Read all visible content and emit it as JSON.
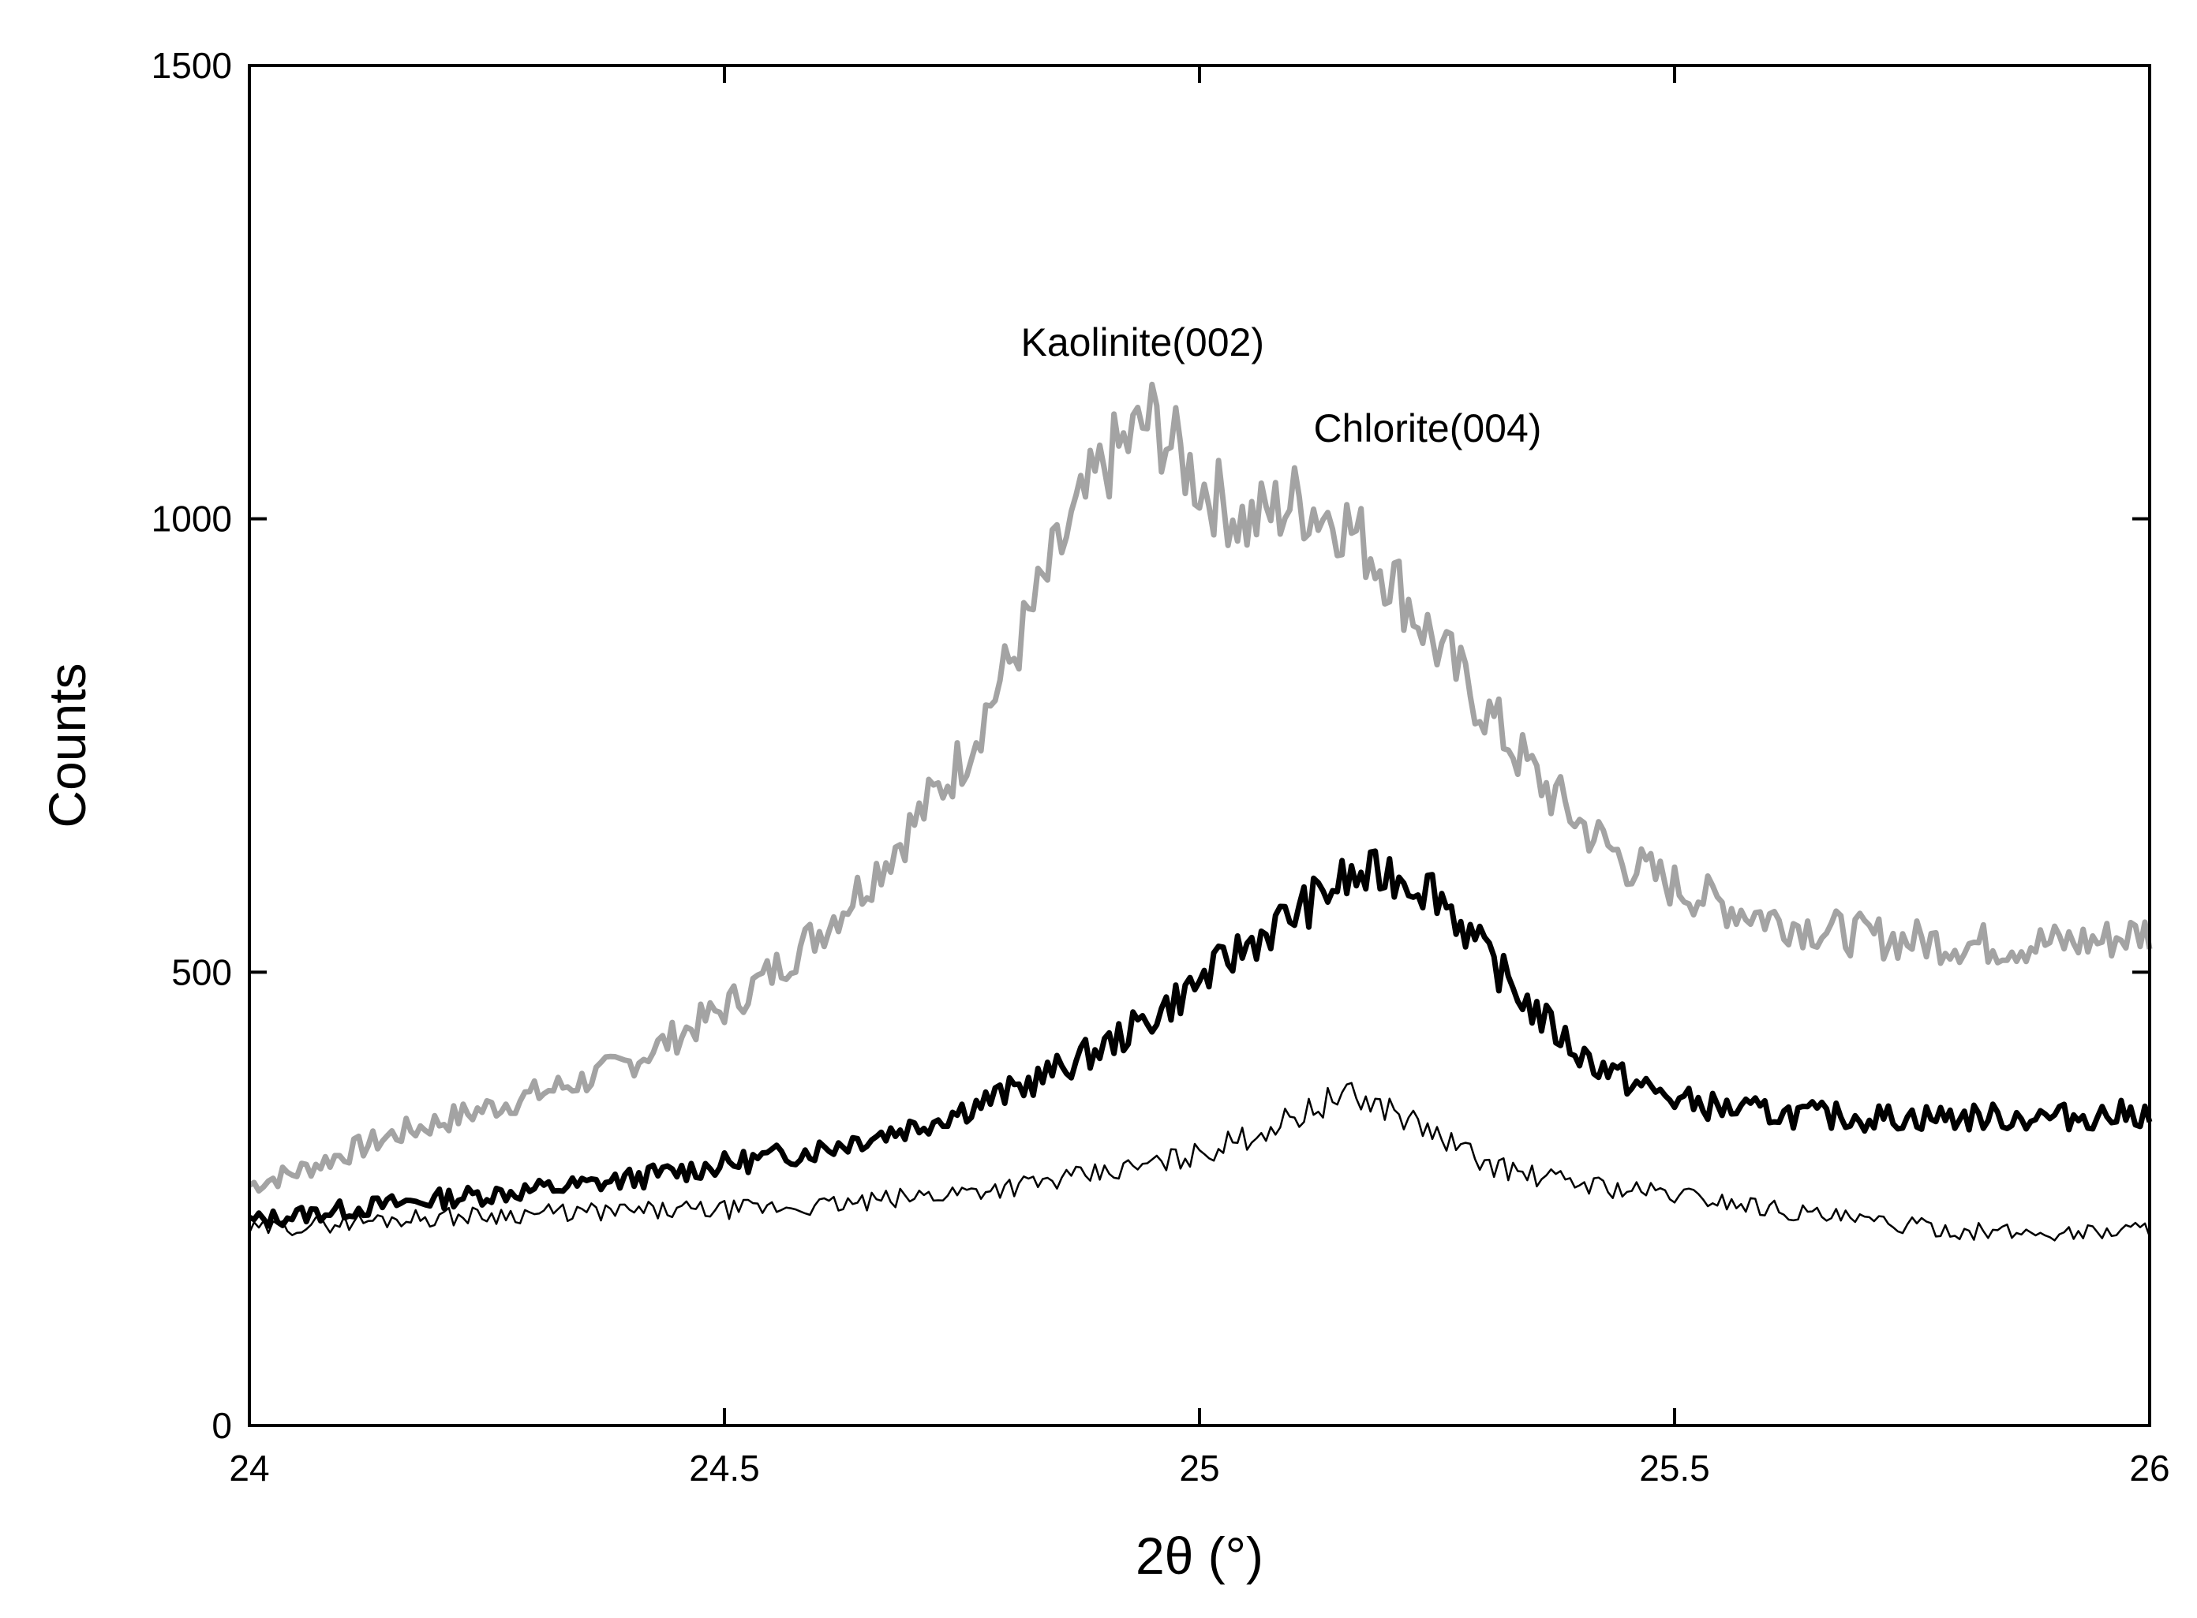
{
  "chart_data": {
    "type": "line",
    "xlabel": "2θ (°)",
    "ylabel": "Counts",
    "xlim": [
      24,
      26
    ],
    "ylim": [
      0,
      1500
    ],
    "xticks": [
      "24",
      "24.5",
      "25",
      "25.5",
      "26"
    ],
    "yticks": [
      "0",
      "500",
      "1000",
      "1500"
    ],
    "grid": false,
    "legend": "none",
    "series": [
      {
        "color": "#a3a3a3",
        "style": "thick",
        "x": [
          24.0,
          24.05,
          24.1,
          24.15,
          24.2,
          24.25,
          24.3,
          24.35,
          24.4,
          24.45,
          24.5,
          24.55,
          24.6,
          24.65,
          24.7,
          24.75,
          24.8,
          24.85,
          24.9,
          24.95,
          25.0,
          25.05,
          25.1,
          25.15,
          25.2,
          25.25,
          25.3,
          25.35,
          25.4,
          25.45,
          25.5,
          25.55,
          25.6,
          25.65,
          25.7,
          25.75,
          25.8,
          25.85,
          25.9,
          25.95,
          26.0
        ],
        "y": [
          265,
          280,
          300,
          320,
          335,
          350,
          365,
          380,
          400,
          430,
          460,
          500,
          545,
          600,
          665,
          735,
          840,
          960,
          1060,
          1110,
          1040,
          995,
          1020,
          1000,
          940,
          860,
          790,
          720,
          665,
          620,
          595,
          575,
          560,
          548,
          540,
          535,
          532,
          530,
          532,
          535,
          545
        ]
      },
      {
        "color": "#000000",
        "style": "thick",
        "x": [
          24.0,
          24.05,
          24.1,
          24.15,
          24.2,
          24.25,
          24.3,
          24.35,
          24.4,
          24.45,
          24.5,
          24.55,
          24.6,
          24.65,
          24.7,
          24.75,
          24.8,
          24.85,
          24.9,
          24.95,
          25.0,
          25.05,
          25.1,
          25.15,
          25.2,
          25.25,
          25.3,
          25.35,
          25.4,
          25.45,
          25.5,
          25.55,
          25.6,
          25.65,
          25.7,
          25.75,
          25.8,
          25.85,
          25.9,
          25.95,
          26.0
        ],
        "y": [
          225,
          232,
          238,
          244,
          250,
          255,
          260,
          265,
          272,
          280,
          288,
          296,
          305,
          318,
          330,
          348,
          368,
          392,
          418,
          450,
          490,
          530,
          565,
          600,
          610,
          590,
          520,
          460,
          410,
          380,
          360,
          350,
          345,
          342,
          340,
          340,
          340,
          340,
          340,
          342,
          345
        ]
      },
      {
        "color": "#000000",
        "style": "thin",
        "x": [
          24.0,
          24.05,
          24.1,
          24.15,
          24.2,
          24.25,
          24.3,
          24.35,
          24.4,
          24.45,
          24.5,
          24.55,
          24.6,
          24.65,
          24.7,
          24.75,
          24.8,
          24.85,
          24.9,
          24.95,
          25.0,
          25.05,
          25.1,
          25.15,
          25.2,
          25.25,
          25.3,
          25.35,
          25.4,
          25.45,
          25.5,
          25.55,
          25.6,
          25.65,
          25.7,
          25.75,
          25.8,
          25.85,
          25.9,
          25.95,
          26.0
        ],
        "y": [
          215,
          220,
          224,
          228,
          230,
          232,
          234,
          235,
          236,
          237,
          238,
          240,
          242,
          246,
          252,
          258,
          264,
          270,
          278,
          288,
          300,
          318,
          340,
          365,
          350,
          320,
          290,
          275,
          268,
          260,
          255,
          248,
          240,
          232,
          225,
          220,
          215,
          213,
          212,
          214,
          218
        ]
      }
    ],
    "annotations": [
      {
        "text": "Kaolinite(002)",
        "x": 24.94,
        "y": 1180
      },
      {
        "text": "Chlorite(004)",
        "x": 25.24,
        "y": 1085
      }
    ]
  }
}
